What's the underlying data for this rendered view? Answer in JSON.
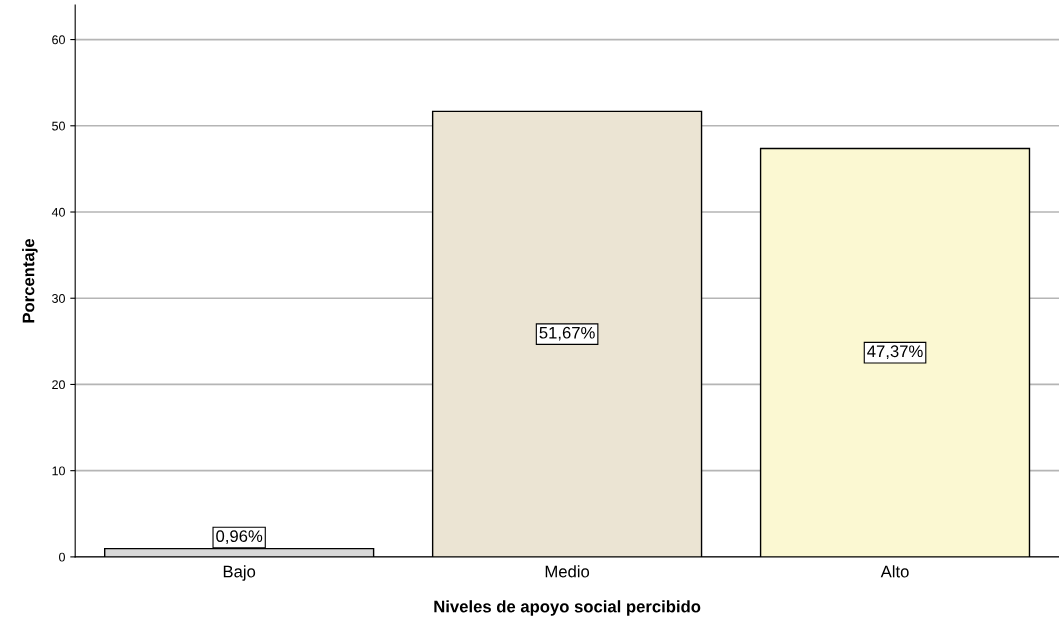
{
  "chart_data": {
    "type": "bar",
    "xlabel": "Niveles de apoyo social percibido",
    "ylabel": "Porcentaje",
    "categories": [
      "Bajo",
      "Medio",
      "Alto"
    ],
    "values": [
      0.96,
      51.67,
      47.37
    ],
    "colors": [
      "#d9d9d9",
      "#ebe4d3",
      "#fbf8d2"
    ],
    "value_labels": [
      "0,96%",
      "51,67%",
      "47,37%"
    ],
    "ylim": [
      0,
      64
    ],
    "yticks": [
      0,
      10,
      20,
      30,
      40,
      50,
      60
    ],
    "grid": "y",
    "legend": false
  }
}
